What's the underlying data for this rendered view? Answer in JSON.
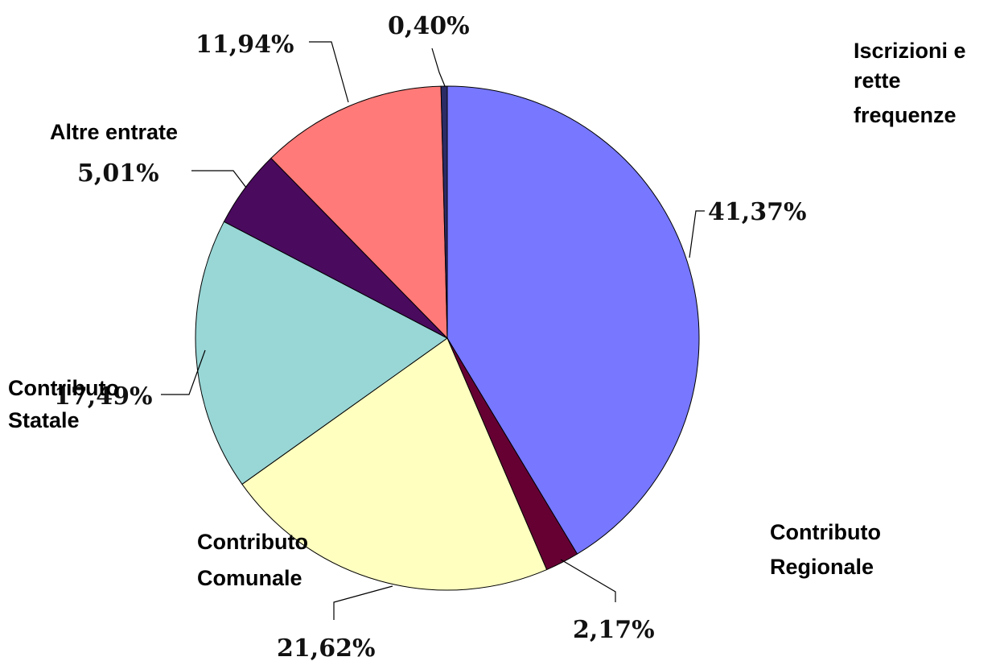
{
  "chart_data": {
    "type": "pie",
    "title": "",
    "slices": [
      {
        "label": "Contributo Regionale",
        "value": 41.37,
        "display": "41,37%",
        "color": "#7777ff"
      },
      {
        "label": "",
        "value": 2.17,
        "display": "2,17%",
        "color": "#660033"
      },
      {
        "label": "Contributo Comunale",
        "value": 21.62,
        "display": "21,62%",
        "color": "#ffffc0"
      },
      {
        "label": "Contributo Statale",
        "value": 17.49,
        "display": "17,49%",
        "color": "#99d6d6"
      },
      {
        "label": "",
        "value": 5.01,
        "display": "5,01%",
        "color": "#4a0a5e"
      },
      {
        "label": "Altre entrate",
        "value": 11.94,
        "display": "11,94%",
        "color": "#ff7a78"
      },
      {
        "label": "Iscrizioni e rette frequenze",
        "value": 0.4,
        "display": "0,40%",
        "color": "#2b2b66"
      }
    ],
    "category_labels": {
      "iscrizioni": [
        "Iscrizioni e",
        "rette",
        "frequenze"
      ],
      "altre": [
        "Altre entrate"
      ],
      "statale": [
        "Contributo",
        "Statale"
      ],
      "comunale": [
        "Contributo",
        "Comunale"
      ],
      "regionale": [
        "Contributo",
        "Regionale"
      ]
    }
  }
}
